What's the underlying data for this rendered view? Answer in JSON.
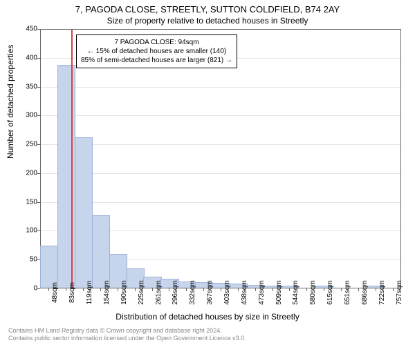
{
  "titles": {
    "main": "7, PAGODA CLOSE, STREETLY, SUTTON COLDFIELD, B74 2AY",
    "sub": "Size of property relative to detached houses in Streetly"
  },
  "axes": {
    "ylabel": "Number of detached properties",
    "xlabel": "Distribution of detached houses by size in Streetly",
    "ylim": [
      0,
      450
    ],
    "ytick_step": 50,
    "label_fontsize": 12,
    "tick_fontsize": 10,
    "border_color": "#666666",
    "grid_color": "#e5e5e5"
  },
  "chart": {
    "type": "histogram",
    "background_color": "#ffffff",
    "bar_color": "#c6d4ec",
    "bar_border": "#9cb3da",
    "marker_color": "#d94040",
    "marker_x_index": 1.3,
    "categories": [
      "48sqm",
      "83sqm",
      "119sqm",
      "154sqm",
      "190sqm",
      "225sqm",
      "261sqm",
      "296sqm",
      "332sqm",
      "367sqm",
      "403sqm",
      "438sqm",
      "473sqm",
      "509sqm",
      "544sqm",
      "580sqm",
      "615sqm",
      "651sqm",
      "686sqm",
      "722sqm",
      "757sqm"
    ],
    "values": [
      72,
      385,
      260,
      125,
      58,
      32,
      18,
      14,
      10,
      8,
      7,
      6,
      4,
      2,
      2,
      0,
      3,
      0,
      0,
      2,
      0
    ]
  },
  "annotation": {
    "line1": "7 PAGODA CLOSE: 94sqm",
    "line2": "← 15% of detached houses are smaller (140)",
    "line3": "85% of semi-detached houses are larger (821) →"
  },
  "footer": {
    "line1": "Contains HM Land Registry data © Crown copyright and database right 2024.",
    "line2": "Contains public sector information licensed under the Open Government Licence v3.0."
  }
}
